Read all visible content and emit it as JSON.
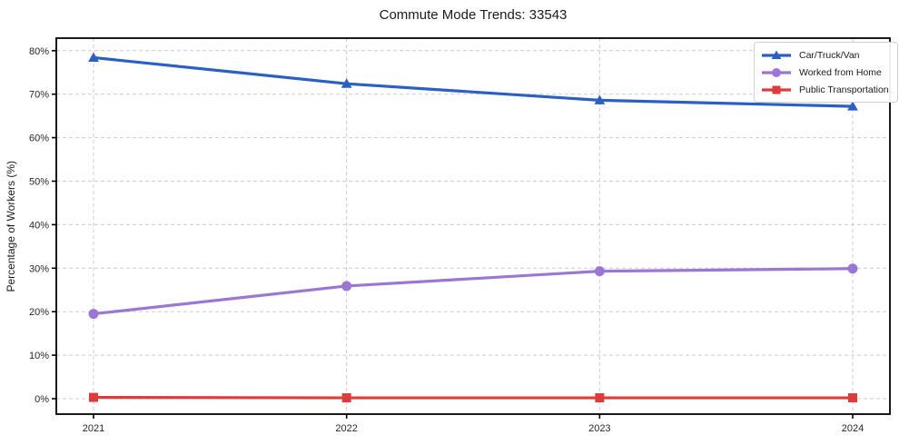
{
  "chart_data": {
    "type": "line",
    "title": "Commute Mode Trends: 33543",
    "x_labels": [
      "2021",
      "2022",
      "2023",
      "2024"
    ],
    "xlabel": "",
    "ylabel": "Percentage of Workers (%)",
    "ylim": [
      0,
      80
    ],
    "yticks": [
      0,
      10,
      20,
      30,
      40,
      50,
      60,
      70,
      80
    ],
    "ytick_labels": [
      "0%",
      "10%",
      "20%",
      "30%",
      "40%",
      "50%",
      "60%",
      "70%",
      "80%"
    ],
    "grid": true,
    "grid_style": "dashed",
    "legend_position": "upper-right",
    "series": [
      {
        "name": "Car/Truck/Van",
        "marker": "triangle",
        "color": "#2a5fc4",
        "values": [
          78.4,
          72.4,
          68.6,
          67.2
        ]
      },
      {
        "name": "Worked from Home",
        "marker": "circle",
        "color": "#9b76d4",
        "values": [
          19.5,
          25.9,
          29.3,
          29.9
        ]
      },
      {
        "name": "Public Transportation",
        "marker": "square",
        "color": "#dc3c3c",
        "values": [
          0.3,
          0.2,
          0.2,
          0.2
        ]
      }
    ]
  },
  "colors": {
    "grid": "#cccccc",
    "axis": "#000000",
    "tick_text": "#262626",
    "background": "#ffffff"
  }
}
